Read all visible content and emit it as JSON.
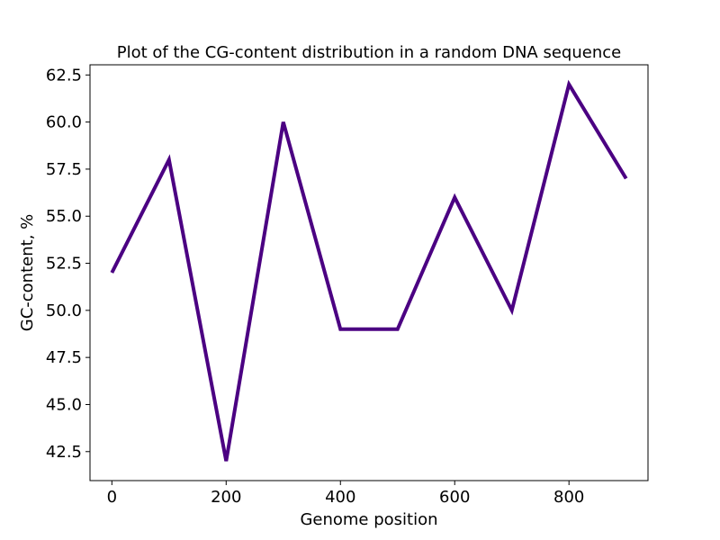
{
  "chart_data": {
    "type": "line",
    "title": "Plot of the CG-content distribution in a random DNA sequence",
    "xlabel": "Genome position",
    "ylabel": "GC-content, %",
    "x": [
      0,
      100,
      200,
      300,
      400,
      500,
      600,
      700,
      800,
      900
    ],
    "series": [
      {
        "values": [
          52,
          58,
          42,
          60,
          49,
          49,
          56,
          50,
          62,
          57
        ],
        "color": "#4b0082"
      }
    ],
    "xlim": [
      -38.3,
      938.3
    ],
    "ylim": [
      40.96,
      63.04
    ],
    "xticks": [
      0,
      200,
      400,
      600,
      800
    ],
    "xtick_labels": [
      "0",
      "200",
      "400",
      "600",
      "800"
    ],
    "yticks": [
      42.5,
      45.0,
      47.5,
      50.0,
      52.5,
      55.0,
      57.5,
      60.0,
      62.5
    ],
    "ytick_labels": [
      "42.5",
      "45.0",
      "47.5",
      "50.0",
      "52.5",
      "55.0",
      "57.5",
      "60.0",
      "62.5"
    ],
    "grid": false,
    "legend": false
  }
}
